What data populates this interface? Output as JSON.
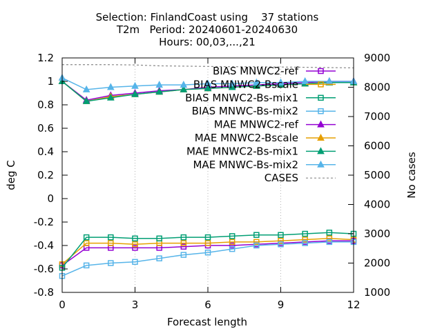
{
  "chart_data": {
    "type": "line",
    "title": [
      "Selection: FinlandCoast using    37 stations",
      "T2m   Period: 20240601-20240630",
      "Hours: 00,03,...,21"
    ],
    "xlabel": "Forecast length",
    "ylabel": "deg C",
    "y2label": "No cases",
    "xlim": [
      0,
      12
    ],
    "ylim": [
      -0.8,
      1.2
    ],
    "y2lim": [
      1000,
      9000
    ],
    "xticks": [
      0,
      3,
      6,
      9,
      12
    ],
    "yticks": [
      -0.8,
      -0.6,
      -0.4,
      -0.2,
      0,
      0.2,
      0.4,
      0.6,
      0.8,
      1,
      1.2
    ],
    "y2ticks": [
      1000,
      2000,
      3000,
      4000,
      5000,
      6000,
      7000,
      8000,
      9000
    ],
    "legend_position": "top-right",
    "x": [
      0,
      1,
      2,
      3,
      4,
      5,
      6,
      7,
      8,
      9,
      10,
      11,
      12
    ],
    "series": [
      {
        "name": "BIAS MNWC2-ref",
        "color": "#9400d3",
        "marker": "square-open",
        "axis": "y1",
        "values": [
          -0.57,
          -0.42,
          -0.42,
          -0.42,
          -0.42,
          -0.41,
          -0.4,
          -0.4,
          -0.39,
          -0.38,
          -0.37,
          -0.36,
          -0.36
        ]
      },
      {
        "name": "BIAS MNWC2-Bscale",
        "color": "#e69f00",
        "marker": "square-open",
        "axis": "y1",
        "values": [
          -0.56,
          -0.38,
          -0.38,
          -0.39,
          -0.38,
          -0.38,
          -0.38,
          -0.37,
          -0.37,
          -0.36,
          -0.35,
          -0.34,
          -0.35
        ]
      },
      {
        "name": "BIAS MNWC2-Bs-mix1",
        "color": "#009e73",
        "marker": "square-open",
        "axis": "y1",
        "values": [
          -0.59,
          -0.33,
          -0.33,
          -0.34,
          -0.34,
          -0.33,
          -0.33,
          -0.32,
          -0.31,
          -0.31,
          -0.3,
          -0.29,
          -0.3
        ]
      },
      {
        "name": "BIAS MNWC-Bs-mix2",
        "color": "#56b4e9",
        "marker": "square-open",
        "axis": "y1",
        "values": [
          -0.66,
          -0.57,
          -0.55,
          -0.54,
          -0.51,
          -0.48,
          -0.46,
          -0.43,
          -0.4,
          -0.39,
          -0.38,
          -0.37,
          -0.37
        ]
      },
      {
        "name": "MAE MNWC2-ref",
        "color": "#9400d3",
        "marker": "triangle",
        "axis": "y1",
        "values": [
          1.0,
          0.84,
          0.88,
          0.9,
          0.92,
          0.93,
          0.95,
          0.96,
          0.97,
          0.98,
          0.99,
          1.0,
          1.0
        ]
      },
      {
        "name": "MAE MNWC2-Bscale",
        "color": "#e69f00",
        "marker": "triangle",
        "axis": "y1",
        "values": [
          1.0,
          0.83,
          0.87,
          0.89,
          0.91,
          0.93,
          0.94,
          0.95,
          0.96,
          0.97,
          0.98,
          0.99,
          0.99
        ]
      },
      {
        "name": "MAE MNWC2-Bs-mix1",
        "color": "#009e73",
        "marker": "triangle",
        "axis": "y1",
        "values": [
          1.0,
          0.83,
          0.86,
          0.89,
          0.91,
          0.93,
          0.94,
          0.95,
          0.96,
          0.97,
          0.98,
          0.99,
          0.99
        ]
      },
      {
        "name": "MAE MNWC-Bs-mix2",
        "color": "#56b4e9",
        "marker": "triangle",
        "axis": "y1",
        "values": [
          1.03,
          0.93,
          0.95,
          0.96,
          0.97,
          0.97,
          0.98,
          0.98,
          0.99,
          0.99,
          1.0,
          1.0,
          1.0
        ]
      },
      {
        "name": "CASES",
        "color": "#888888",
        "marker": "none",
        "dash": true,
        "axis": "y2",
        "values": [
          8770,
          8770,
          8770,
          8760,
          8730,
          8720,
          8710,
          8700,
          8700,
          8690,
          8680,
          8670,
          8660
        ]
      }
    ]
  }
}
